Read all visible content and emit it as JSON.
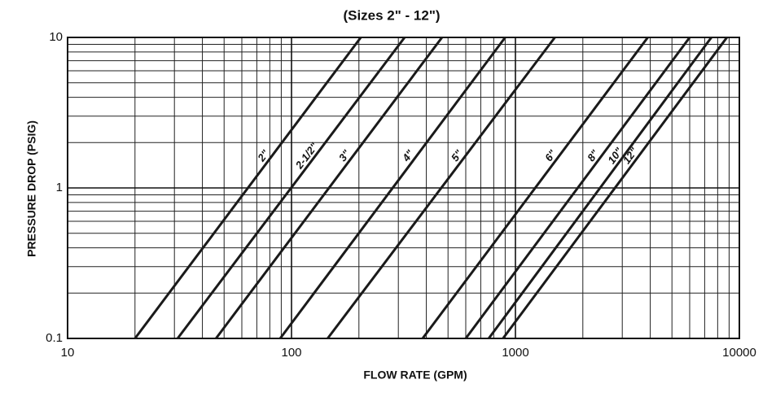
{
  "chart_data": {
    "type": "line",
    "title": "(Sizes 2\" - 12\")",
    "x_label": "FLOW RATE (GPM)",
    "y_label": "PRESSURE DROP (PSIG)",
    "xscale": "log",
    "yscale": "log",
    "grid": true,
    "minor_grid": true,
    "xlim": [
      10,
      10000
    ],
    "ylim": [
      0.1,
      10
    ],
    "xticks": [
      10,
      100,
      1000,
      10000
    ],
    "yticks": [
      0.1,
      1,
      10
    ],
    "series": [
      {
        "name": "2\"",
        "color": "#1a1a1a",
        "x": [
          20,
          204
        ],
        "values": [
          0.1,
          10
        ]
      },
      {
        "name": "2-1/2\"",
        "color": "#1a1a1a",
        "x": [
          31,
          320
        ],
        "values": [
          0.1,
          10
        ]
      },
      {
        "name": "3\"",
        "color": "#1a1a1a",
        "x": [
          46,
          470
        ],
        "values": [
          0.1,
          10
        ]
      },
      {
        "name": "4\"",
        "color": "#1a1a1a",
        "x": [
          89,
          900
        ],
        "values": [
          0.1,
          10
        ]
      },
      {
        "name": "5\"",
        "color": "#1a1a1a",
        "x": [
          145,
          1500
        ],
        "values": [
          0.1,
          10
        ]
      },
      {
        "name": "6\"",
        "color": "#1a1a1a",
        "x": [
          385,
          3900
        ],
        "values": [
          0.1,
          10
        ]
      },
      {
        "name": "8\"",
        "color": "#1a1a1a",
        "x": [
          600,
          6000
        ],
        "values": [
          0.1,
          10
        ]
      },
      {
        "name": "10\"",
        "color": "#1a1a1a",
        "x": [
          760,
          7500
        ],
        "values": [
          0.1,
          10
        ]
      },
      {
        "name": "12\"",
        "color": "#1a1a1a",
        "x": [
          880,
          8800
        ],
        "values": [
          0.1,
          10
        ]
      }
    ]
  }
}
